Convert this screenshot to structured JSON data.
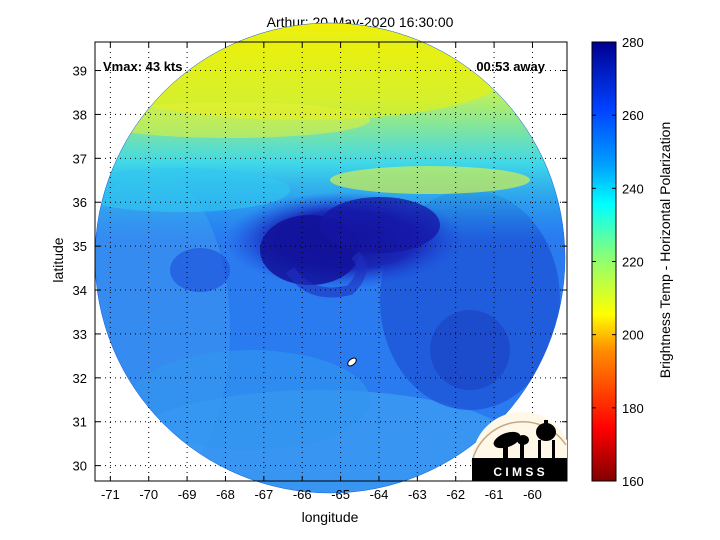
{
  "title": "Arthur: 20-May-2020 16:30:00",
  "annotations": {
    "vmax": "Vmax: 43 kts",
    "time_away": "00:53 away"
  },
  "axes": {
    "xlabel": "longitude",
    "ylabel": "latitude",
    "x_ticks": [
      "-71",
      "-70",
      "-69",
      "-68",
      "-67",
      "-66",
      "-65",
      "-64",
      "-63",
      "-62",
      "-61",
      "-60"
    ],
    "y_ticks": [
      "30",
      "31",
      "32",
      "33",
      "34",
      "35",
      "36",
      "37",
      "38",
      "39"
    ],
    "xlim": [
      -71.4,
      -59.1
    ],
    "ylim": [
      29.65,
      39.65
    ],
    "grid": "dotted"
  },
  "colorbar": {
    "label": "Brightness Temp - Horizontal Polarization",
    "ticks": [
      "160",
      "180",
      "200",
      "220",
      "240",
      "260",
      "280"
    ],
    "range": [
      160,
      280
    ],
    "colormap": "jet-reversed"
  },
  "logo": {
    "text": "C I M S S"
  },
  "colors": {
    "cold_core": "#1414a0",
    "warm_band": "#f0f000",
    "background_field": "#1e78f0"
  }
}
